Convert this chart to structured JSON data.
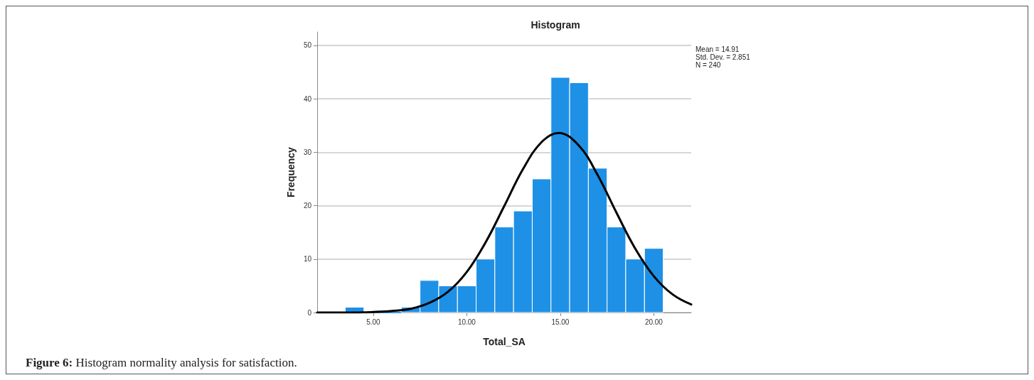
{
  "chart_data": {
    "type": "histogram",
    "title": "Histogram",
    "xlabel": "Total_SA",
    "ylabel": "Frequency",
    "xlim": [
      2,
      22
    ],
    "xticks": [
      {
        "value": 5,
        "label": "5.00"
      },
      {
        "value": 10,
        "label": "10.00"
      },
      {
        "value": 15,
        "label": "15.00"
      },
      {
        "value": 20,
        "label": "20.00"
      }
    ],
    "ylim": [
      0,
      52.5
    ],
    "yticks": [
      0,
      10,
      20,
      30,
      40,
      50
    ],
    "grid": "y",
    "series": [
      {
        "color": "#1e90e6",
        "bins": [
          3.5,
          4.5,
          5.5,
          6.5,
          7.5,
          8.5,
          9.5,
          10.5,
          11.5,
          12.5,
          13.5,
          14.5,
          15.5,
          16.5,
          17.5,
          18.5,
          19.5,
          20.5
        ],
        "values": [
          1,
          0,
          0,
          1,
          6,
          5,
          5,
          10,
          16,
          19,
          25,
          44,
          43,
          27,
          16,
          10,
          12
        ]
      },
      {
        "type": "line",
        "color": "#000000",
        "x": [
          2,
          4,
          5,
          6,
          7,
          8,
          9,
          10,
          11,
          12,
          13,
          14,
          14.91,
          16,
          17,
          18,
          19,
          20,
          21,
          22
        ],
        "values": [
          0,
          0,
          0.1,
          0.3,
          0.7,
          1.8,
          3.9,
          7.6,
          13.1,
          19.9,
          26.8,
          31.9,
          33.6,
          31.2,
          25.7,
          18.7,
          12.0,
          6.8,
          3.4,
          1.5
        ]
      }
    ],
    "annotations": [
      "Mean = 14.91",
      "Std. Dev. = 2.851",
      "N = 240",
      "Figure 6: Histogram normality analysis for satisfaction."
    ]
  }
}
